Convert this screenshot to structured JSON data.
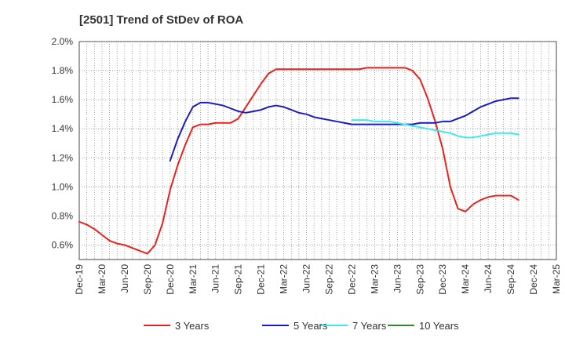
{
  "chart_data": {
    "type": "line",
    "title": "[2501]  Trend of StDev of ROA",
    "xlabel": "",
    "ylabel": "",
    "ylim": [
      0.5,
      2.0
    ],
    "y_ticks": [
      "2.0%",
      "1.8%",
      "1.6%",
      "1.4%",
      "1.2%",
      "1.0%",
      "0.8%",
      "0.6%"
    ],
    "y_tick_values": [
      2.0,
      1.8,
      1.6,
      1.4,
      1.2,
      1.0,
      0.8,
      0.6
    ],
    "x_ticks": [
      "Dec-19",
      "Mar-20",
      "Jun-20",
      "Sep-20",
      "Dec-20",
      "Mar-21",
      "Jun-21",
      "Sep-21",
      "Dec-21",
      "Mar-22",
      "Jun-22",
      "Sep-22",
      "Dec-22",
      "Mar-23",
      "Jun-23",
      "Sep-23",
      "Dec-23",
      "Mar-24",
      "Jun-24",
      "Sep-24",
      "Dec-24",
      "Mar-25"
    ],
    "grid": true,
    "grid_style": "dotted",
    "legend_position": "bottom",
    "series": [
      {
        "name": "3 Years",
        "color": "#e8231e",
        "start_index": 0,
        "values": [
          0.76,
          0.74,
          0.71,
          0.67,
          0.63,
          0.61,
          0.6,
          0.58,
          0.56,
          0.54,
          0.6,
          0.75,
          0.98,
          1.15,
          1.29,
          1.41,
          1.43,
          1.43,
          1.44,
          1.44,
          1.44,
          1.47,
          1.55,
          1.63,
          1.71,
          1.78,
          1.81,
          1.81,
          1.81,
          1.81,
          1.81,
          1.81,
          1.81,
          1.81,
          1.81,
          1.81,
          1.81,
          1.81,
          1.82,
          1.82,
          1.82,
          1.82,
          1.82,
          1.82,
          1.8,
          1.74,
          1.61,
          1.45,
          1.26,
          1.0,
          0.85,
          0.83,
          0.88,
          0.91,
          0.93,
          0.94,
          0.94,
          0.94,
          0.91
        ]
      },
      {
        "name": "5 Years",
        "color": "#1c1cbf",
        "start_index": 12,
        "values": [
          1.18,
          1.33,
          1.45,
          1.55,
          1.58,
          1.58,
          1.57,
          1.56,
          1.54,
          1.52,
          1.51,
          1.52,
          1.53,
          1.55,
          1.56,
          1.55,
          1.53,
          1.51,
          1.5,
          1.48,
          1.47,
          1.46,
          1.45,
          1.44,
          1.43,
          1.43,
          1.43,
          1.43,
          1.43,
          1.43,
          1.43,
          1.43,
          1.43,
          1.44,
          1.44,
          1.44,
          1.45,
          1.45,
          1.47,
          1.49,
          1.52,
          1.55,
          1.57,
          1.59,
          1.6,
          1.61,
          1.61
        ]
      },
      {
        "name": "7 Years",
        "color": "#3ee8f0",
        "start_index": 36,
        "values": [
          1.46,
          1.46,
          1.46,
          1.45,
          1.45,
          1.45,
          1.44,
          1.43,
          1.42,
          1.41,
          1.4,
          1.39,
          1.38,
          1.37,
          1.35,
          1.34,
          1.34,
          1.35,
          1.36,
          1.37,
          1.37,
          1.37,
          1.36
        ]
      },
      {
        "name": "10 Years",
        "color": "#2e8b2e",
        "start_index": 0,
        "values": []
      }
    ]
  }
}
